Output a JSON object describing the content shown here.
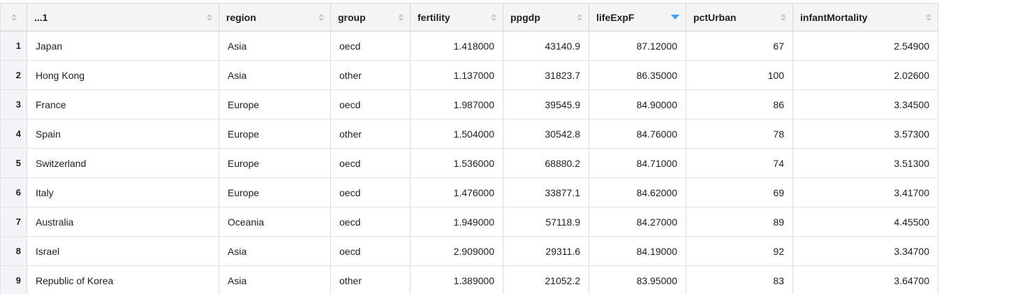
{
  "app": {
    "name": "data-frame-viewer"
  },
  "colors": {
    "accent_sort_arrow": "#3da1f5",
    "idle_sort_arrow": "#c4c8cc",
    "header_background": "#f4f4f4",
    "gutter_background": "#f3f4f6",
    "cell_background": "#ffffff",
    "grid_line": "#dcdcdc"
  },
  "table": {
    "columns": [
      {
        "key": "name",
        "label": "...1",
        "align": "left",
        "sort": "none"
      },
      {
        "key": "region",
        "label": "region",
        "align": "left",
        "sort": "none"
      },
      {
        "key": "group",
        "label": "group",
        "align": "left",
        "sort": "none"
      },
      {
        "key": "fertility",
        "label": "fertility",
        "align": "right",
        "sort": "none"
      },
      {
        "key": "ppgdp",
        "label": "ppgdp",
        "align": "right",
        "sort": "none"
      },
      {
        "key": "lifeExpF",
        "label": "lifeExpF",
        "align": "right",
        "sort": "desc"
      },
      {
        "key": "pctUrban",
        "label": "pctUrban",
        "align": "right",
        "sort": "none"
      },
      {
        "key": "infantMortality",
        "label": "infantMortality",
        "align": "right",
        "sort": "none"
      }
    ],
    "rows": [
      {
        "num": "1",
        "values": [
          "Japan",
          "Asia",
          "oecd",
          "1.418000",
          "43140.9",
          "87.12000",
          "67",
          "2.54900"
        ]
      },
      {
        "num": "2",
        "values": [
          "Hong Kong",
          "Asia",
          "other",
          "1.137000",
          "31823.7",
          "86.35000",
          "100",
          "2.02600"
        ]
      },
      {
        "num": "3",
        "values": [
          "France",
          "Europe",
          "oecd",
          "1.987000",
          "39545.9",
          "84.90000",
          "86",
          "3.34500"
        ]
      },
      {
        "num": "4",
        "values": [
          "Spain",
          "Europe",
          "other",
          "1.504000",
          "30542.8",
          "84.76000",
          "78",
          "3.57300"
        ]
      },
      {
        "num": "5",
        "values": [
          "Switzerland",
          "Europe",
          "oecd",
          "1.536000",
          "68880.2",
          "84.71000",
          "74",
          "3.51300"
        ]
      },
      {
        "num": "6",
        "values": [
          "Italy",
          "Europe",
          "oecd",
          "1.476000",
          "33877.1",
          "84.62000",
          "69",
          "3.41700"
        ]
      },
      {
        "num": "7",
        "values": [
          "Australia",
          "Oceania",
          "oecd",
          "1.949000",
          "57118.9",
          "84.27000",
          "89",
          "4.45500"
        ]
      },
      {
        "num": "8",
        "values": [
          "Israel",
          "Asia",
          "oecd",
          "2.909000",
          "29311.6",
          "84.19000",
          "92",
          "3.34700"
        ]
      },
      {
        "num": "9",
        "values": [
          "Republic of Korea",
          "Asia",
          "other",
          "1.389000",
          "21052.2",
          "83.95000",
          "83",
          "3.64700"
        ]
      }
    ]
  }
}
